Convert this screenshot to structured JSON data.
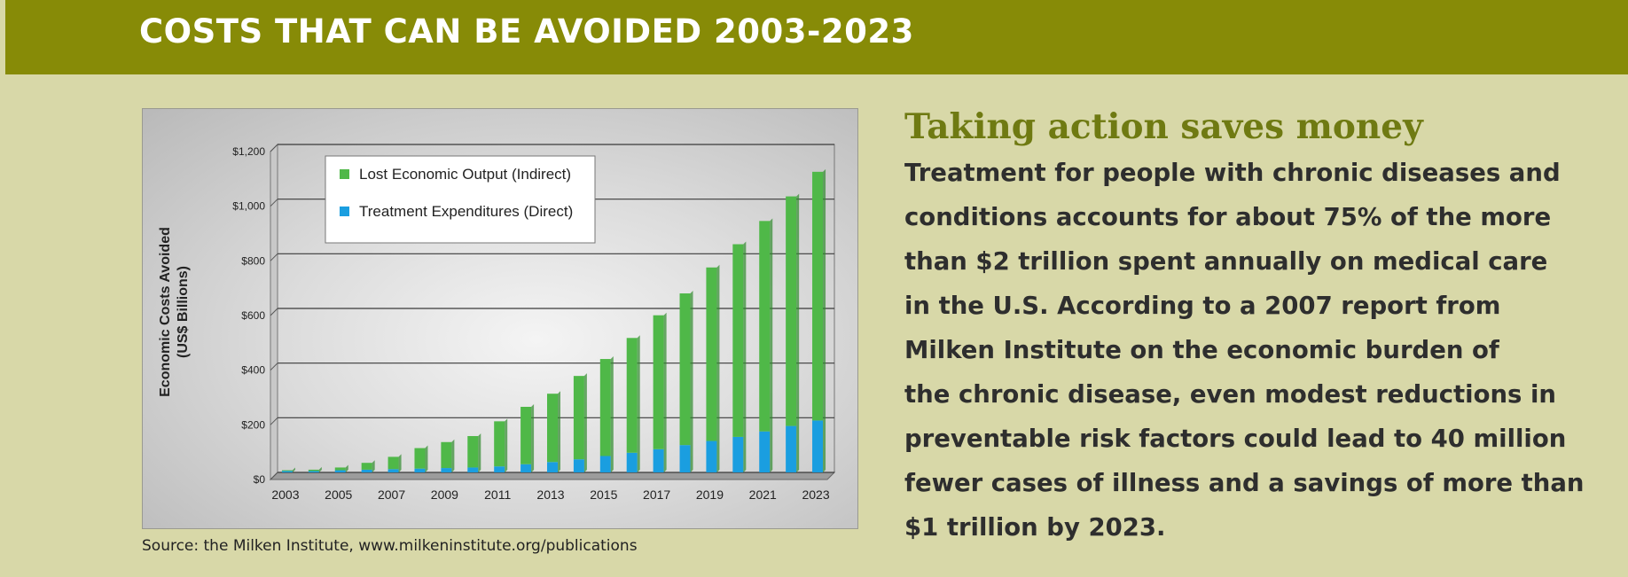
{
  "banner": {
    "title": "COSTS THAT CAN BE AVOIDED 2003-2023"
  },
  "source": "Source: the Milken Institute, www.milkeninstitute.org/publications",
  "side": {
    "heading": "Taking action saves money",
    "lines": [
      "Treatment for people with chronic diseases and",
      "conditions accounts for about 75% of the more",
      "than $2 trillion spent annually on medical care",
      "in  the U.S. According to a 2007 report from",
      "Milken Institute on the economic burden of",
      "the chronic disease, even modest reductions in",
      "preventable risk factors could lead to 40 million",
      "fewer cases of illness and a savings of more than",
      "$1 trillion by 2023."
    ]
  },
  "chart_data": {
    "type": "bar",
    "stacked": true,
    "title": "",
    "ylabel": "Economic Costs Avoided (US$ Billions)",
    "ylabel_lines": [
      "Economic Costs Avoided",
      "(US$ Billions)"
    ],
    "xlabel": "",
    "ylim": [
      0,
      1200
    ],
    "yticks": [
      0,
      200,
      400,
      600,
      800,
      1000,
      1200
    ],
    "ytick_labels": [
      "$0",
      "$200",
      "$400",
      "$600",
      "$800",
      "$1,000",
      "$1,200"
    ],
    "categories": [
      "2003",
      "2004",
      "2005",
      "2006",
      "2007",
      "2008",
      "2009",
      "2010",
      "2011",
      "2012",
      "2013",
      "2014",
      "2015",
      "2016",
      "2017",
      "2018",
      "2019",
      "2020",
      "2021",
      "2022",
      "2023"
    ],
    "xtick_labels": [
      "2003",
      "2005",
      "2007",
      "2009",
      "2011",
      "2013",
      "2015",
      "2017",
      "2019",
      "2021",
      "2023"
    ],
    "series": [
      {
        "name": "Treatment Expenditures (Direct)",
        "color": "#1a9ee0",
        "values": [
          5,
          5,
          8,
          10,
          12,
          14,
          16,
          18,
          22,
          30,
          38,
          48,
          60,
          72,
          85,
          100,
          115,
          130,
          150,
          170,
          190
        ]
      },
      {
        "name": "Lost Economic Output (Indirect)",
        "color": "#4fb848",
        "values": [
          3,
          5,
          10,
          25,
          45,
          75,
          95,
          115,
          165,
          210,
          250,
          305,
          355,
          420,
          490,
          555,
          635,
          705,
          770,
          840,
          910
        ]
      }
    ],
    "legend_order": [
      "Lost Economic Output (Indirect)",
      "Treatment Expenditures (Direct)"
    ],
    "legend_position": "top-left",
    "grid": true
  }
}
